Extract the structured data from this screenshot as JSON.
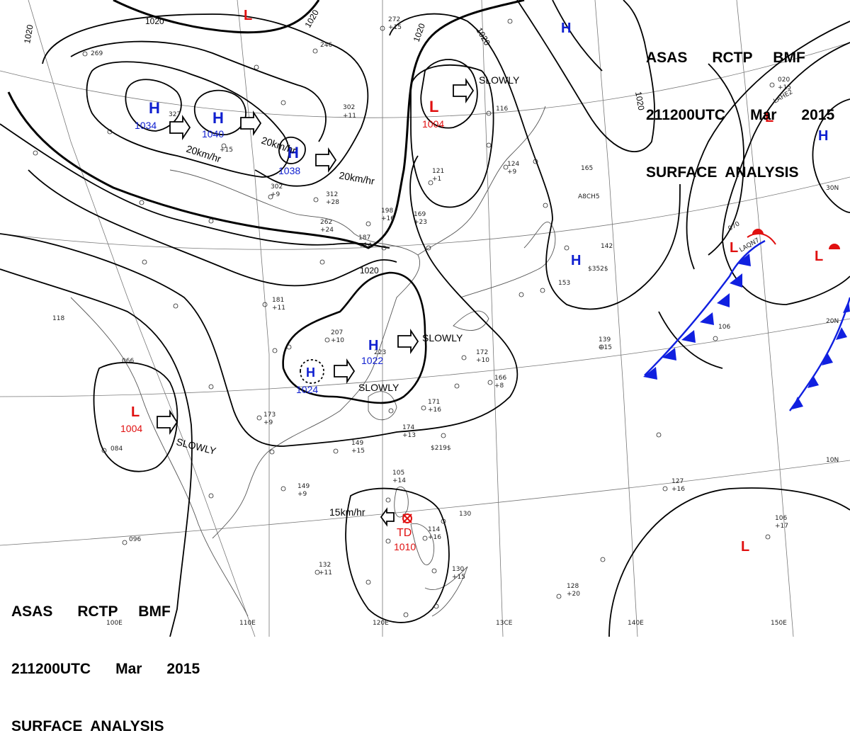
{
  "header": {
    "line1": "ASAS      RCTP     BMF",
    "line2": "211200UTC      Mar      2015",
    "line3": "SURFACE  ANALYSIS"
  },
  "colors": {
    "high": "#1020d0",
    "low": "#e01010",
    "front": "#1020e0",
    "isobar": "#000000",
    "grid": "#777777"
  },
  "longitudes": [
    "110E",
    "120E",
    "13CE",
    "140E",
    "150E",
    "100E"
  ],
  "latitudes": [
    "30N",
    "20N",
    "10N"
  ],
  "isobar_labels": [
    "1020",
    "1020",
    "1020",
    "1020",
    "1020",
    "1020",
    "1020"
  ],
  "pressure_centers": [
    {
      "type": "H",
      "value": "1034"
    },
    {
      "type": "H",
      "value": "1040"
    },
    {
      "type": "H",
      "value": "1038"
    },
    {
      "type": "H",
      "value": "1022"
    },
    {
      "type": "H",
      "value": "1024"
    },
    {
      "type": "H",
      "value": ""
    },
    {
      "type": "H",
      "value": ""
    },
    {
      "type": "H",
      "value": ""
    },
    {
      "type": "L",
      "value": "1004"
    },
    {
      "type": "L",
      "value": "1004"
    },
    {
      "type": "L",
      "value": ""
    },
    {
      "type": "L",
      "value": ""
    },
    {
      "type": "L",
      "value": ""
    },
    {
      "type": "L",
      "value": ""
    },
    {
      "type": "TD",
      "value": "1010"
    }
  ],
  "motions": [
    "20km/hr",
    "20km/hr",
    "20km/hr",
    "SLOWLY",
    "SLOWLY",
    "SLOWLY",
    "SLOWLY",
    "15km/hr"
  ],
  "station_labels": [
    "272",
    "+15",
    "246",
    "269",
    "327",
    "302",
    "+11",
    "+15",
    "312",
    "+28",
    "302",
    "+9",
    "262",
    "+24",
    "198",
    "+16",
    "169",
    "+23",
    "187",
    "+14",
    "121",
    "+1",
    "116",
    "124",
    "+9",
    "165",
    "142",
    "$352$",
    "153",
    "181",
    "+11",
    "207",
    "+10",
    "223",
    "172",
    "+10",
    "166",
    "+8",
    "171",
    "+16",
    "173",
    "+9",
    "149",
    "+15",
    "174",
    "+13",
    "$219$",
    "066",
    "084",
    "096",
    "118",
    "149",
    "+9",
    "105",
    "+14",
    "130",
    "114",
    "+16",
    "132",
    "+11",
    "130",
    "+15",
    "128",
    "+20",
    "127",
    "+16",
    "106",
    "+17",
    "139",
    "+15",
    "106",
    "020",
    "+15",
    "LAQN7",
    "A8CH5",
    "LAHE2",
    "070"
  ]
}
